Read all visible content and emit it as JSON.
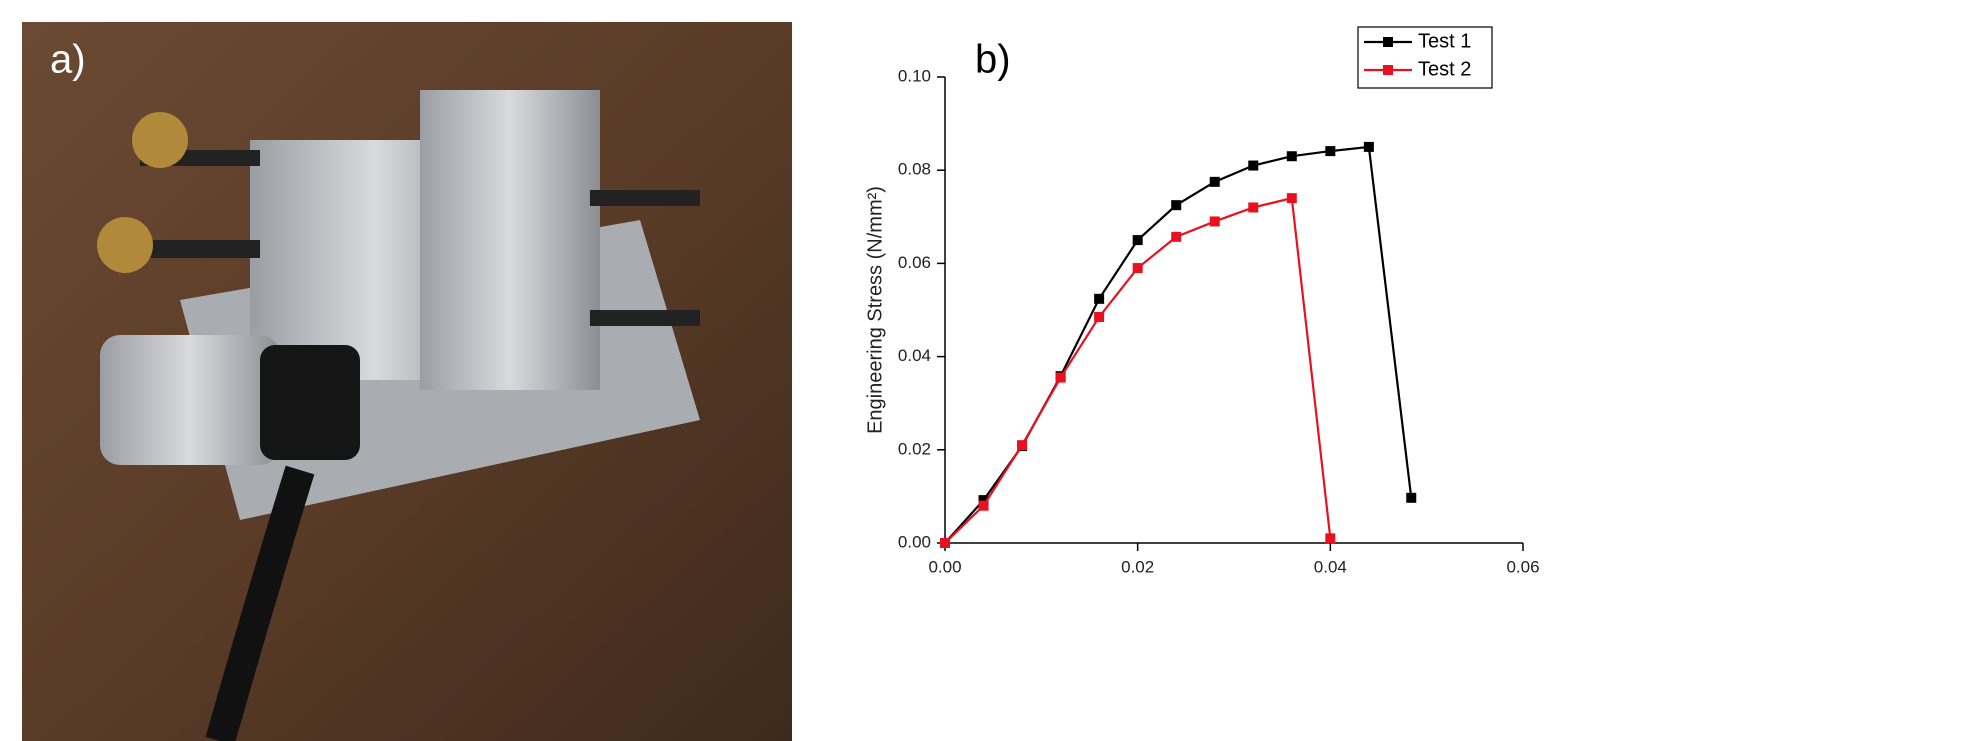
{
  "photo_label": "a)",
  "chart_data": {
    "type": "line",
    "panel_label": "b)",
    "y_label": "Engineering Stress (N/mm²)",
    "xlim": [
      0,
      0.06
    ],
    "ylim": [
      0,
      0.1
    ],
    "xticks": [
      {
        "value": 0,
        "label": "0.00"
      },
      {
        "value": 0.02,
        "label": "0.02"
      },
      {
        "value": 0.04,
        "label": "0.04"
      },
      {
        "value": 0.06,
        "label": "0.06"
      }
    ],
    "yticks": [
      {
        "value": 0,
        "label": "0.00"
      },
      {
        "value": 0.02,
        "label": "0.02"
      },
      {
        "value": 0.04,
        "label": "0.04"
      },
      {
        "value": 0.06,
        "label": "0.06"
      },
      {
        "value": 0.08,
        "label": "0.08"
      },
      {
        "value": 0.1,
        "label": "0.10"
      }
    ],
    "legend": "upper right",
    "series": [
      {
        "name": "Test 1",
        "color": "#000000",
        "x": [
          0,
          0.004,
          0.008,
          0.012,
          0.016,
          0.02,
          0.024,
          0.028,
          0.032,
          0.036,
          0.04,
          0.044,
          0.0484
        ],
        "values": [
          0,
          0.0092,
          0.0208,
          0.0358,
          0.0524,
          0.065,
          0.0725,
          0.0775,
          0.081,
          0.083,
          0.0841,
          0.085,
          0.0097
        ]
      },
      {
        "name": "Test 2",
        "color": "#e8111f",
        "x": [
          0,
          0.004,
          0.008,
          0.012,
          0.016,
          0.02,
          0.024,
          0.028,
          0.032,
          0.036,
          0.04
        ],
        "values": [
          0,
          0.008,
          0.021,
          0.0355,
          0.0485,
          0.059,
          0.0657,
          0.069,
          0.072,
          0.074,
          0.001
        ]
      }
    ]
  }
}
